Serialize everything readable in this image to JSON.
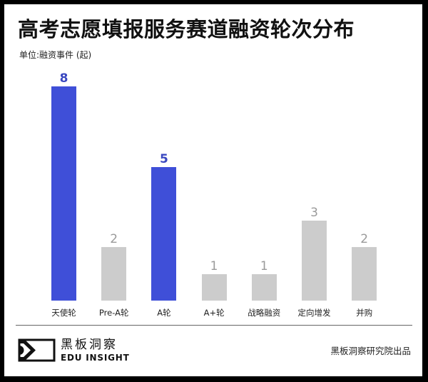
{
  "title": "高考志愿填报服务赛道融资轮次分布",
  "subtitle": "单位:融资事件 (起)",
  "chart_data": {
    "type": "bar",
    "title": "高考志愿填报服务赛道融资轮次分布",
    "ylabel": "单位:融资事件 (起)",
    "xlabel": "",
    "categories": [
      "天使轮",
      "Pre-A轮",
      "A轮",
      "A+轮",
      "战略融资",
      "定向增发",
      "并购"
    ],
    "values": [
      8,
      2,
      5,
      1,
      1,
      3,
      2
    ],
    "highlighted": [
      true,
      false,
      true,
      false,
      false,
      false,
      false
    ],
    "ylim": [
      0,
      8
    ],
    "grid": false,
    "legend": "none",
    "data_labels": true
  },
  "colors": {
    "highlight_bar": "#3f4fd8",
    "highlight_label": "#3a48c0",
    "normal_bar": "#cccccc",
    "normal_label": "#9a9a9a"
  },
  "footer": {
    "logo_cn": "黑板洞察",
    "logo_en": "EDU INSIGHT",
    "logo_icon": "eye-frame-icon",
    "credit": "黑板洞察研究院出品"
  }
}
